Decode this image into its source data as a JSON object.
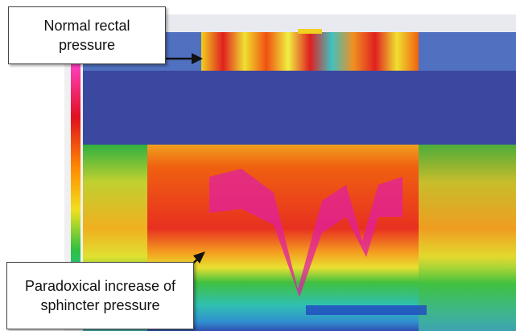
{
  "annotations": [
    {
      "text": "Normal rectal pressure"
    },
    {
      "text": "Paradoxical increase of sphincter pressure"
    }
  ]
}
